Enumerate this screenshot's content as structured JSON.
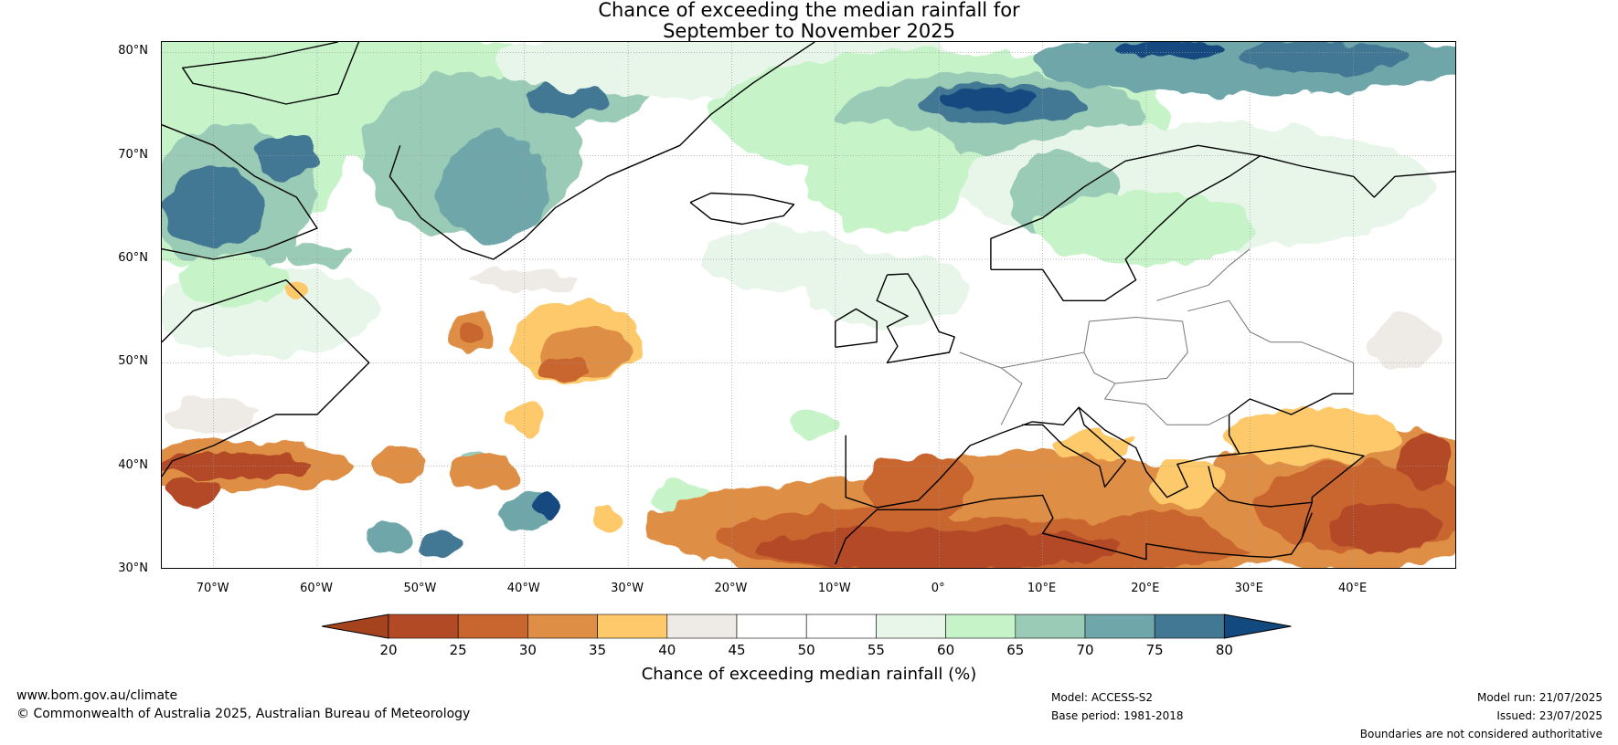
{
  "title": {
    "line1": "Chance of exceeding the median rainfall for",
    "line2": "September to November 2025"
  },
  "map": {
    "lat_labels": [
      "80°N",
      "70°N",
      "60°N",
      "50°N",
      "40°N",
      "30°N"
    ],
    "lon_labels": [
      "70°W",
      "60°W",
      "50°W",
      "40°W",
      "30°W",
      "20°W",
      "10°W",
      "0°",
      "10°E",
      "20°E",
      "30°E",
      "40°E"
    ],
    "lat_range": [
      30,
      81
    ],
    "lon_range": [
      -75,
      50
    ]
  },
  "colorbar": {
    "ticks": [
      "20",
      "25",
      "30",
      "35",
      "40",
      "45",
      "50",
      "55",
      "60",
      "65",
      "70",
      "75",
      "80"
    ],
    "colors": [
      "#a5431f",
      "#b34a26",
      "#c9652f",
      "#df8f45",
      "#fdc96b",
      "#eeebe6",
      "#ffffff",
      "#ffffff",
      "#e8f6ea",
      "#c6f4c8",
      "#9acbb6",
      "#6ea6aa",
      "#427894",
      "#124a7f"
    ],
    "label": "Chance of exceeding median rainfall (%)"
  },
  "footer": {
    "url": "www.bom.gov.au/climate",
    "copyright": "© Commonwealth of Australia 2025, Australian Bureau of Meteorology",
    "model": "Model: ACCESS-S2",
    "base_period": "Base period: 1981-2018",
    "model_run": "Model run: 21/07/2025",
    "issued": "Issued: 23/07/2025",
    "disclaimer": "Boundaries are not considered authoritative"
  }
}
